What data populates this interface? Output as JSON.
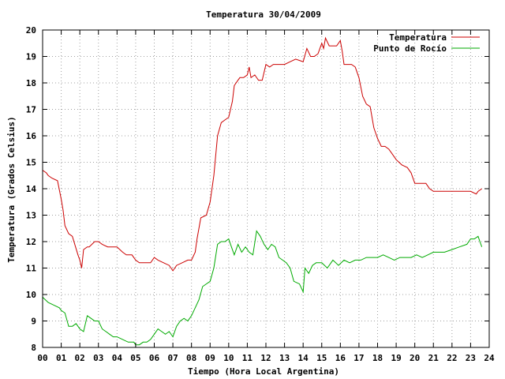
{
  "chart_data": {
    "type": "line",
    "title": "Temperatura 30/04/2009",
    "xlabel": "Tiempo (Hora Local Argentina)",
    "ylabel": "Temperatura (Grados Celsius)",
    "xlim": [
      0,
      24
    ],
    "ylim": [
      8,
      20
    ],
    "xticks": [
      "00",
      "01",
      "02",
      "03",
      "04",
      "05",
      "06",
      "07",
      "08",
      "09",
      "10",
      "11",
      "12",
      "13",
      "14",
      "15",
      "16",
      "17",
      "18",
      "19",
      "20",
      "21",
      "22",
      "23",
      "24"
    ],
    "yticks": [
      8,
      9,
      10,
      11,
      12,
      13,
      14,
      15,
      16,
      17,
      18,
      19,
      20
    ],
    "grid": true,
    "legend_position": "top-right",
    "series": [
      {
        "name": "Temperatura",
        "color": "#cc0000",
        "x": [
          0.0,
          0.2,
          0.3,
          0.5,
          0.8,
          1.0,
          1.1,
          1.2,
          1.4,
          1.6,
          1.9,
          2.0,
          2.1,
          2.2,
          2.4,
          2.5,
          2.8,
          3.0,
          3.2,
          3.5,
          3.8,
          4.0,
          4.3,
          4.5,
          4.8,
          5.0,
          5.2,
          5.5,
          5.8,
          6.0,
          6.2,
          6.5,
          6.8,
          7.0,
          7.2,
          7.5,
          7.8,
          8.0,
          8.2,
          8.3,
          8.5,
          8.8,
          9.0,
          9.2,
          9.4,
          9.6,
          9.8,
          10.0,
          10.2,
          10.3,
          10.5,
          10.6,
          10.8,
          11.0,
          11.1,
          11.2,
          11.4,
          11.6,
          11.8,
          12.0,
          12.2,
          12.4,
          12.6,
          13.0,
          13.3,
          13.6,
          14.0,
          14.2,
          14.4,
          14.6,
          14.8,
          15.0,
          15.1,
          15.2,
          15.4,
          15.6,
          15.8,
          16.0,
          16.1,
          16.2,
          16.4,
          16.6,
          16.8,
          17.0,
          17.2,
          17.4,
          17.6,
          17.8,
          18.0,
          18.2,
          18.4,
          18.6,
          18.8,
          19.0,
          19.3,
          19.6,
          19.8,
          20.0,
          20.3,
          20.6,
          20.8,
          21.0,
          21.3,
          21.6,
          22.0,
          22.5,
          23.0,
          23.3,
          23.4,
          23.6
        ],
        "values": [
          14.7,
          14.6,
          14.5,
          14.4,
          14.3,
          13.6,
          13.2,
          12.6,
          12.3,
          12.2,
          11.5,
          11.3,
          11.0,
          11.7,
          11.8,
          11.8,
          12.0,
          12.0,
          11.9,
          11.8,
          11.8,
          11.8,
          11.6,
          11.5,
          11.5,
          11.3,
          11.2,
          11.2,
          11.2,
          11.4,
          11.3,
          11.2,
          11.1,
          10.9,
          11.1,
          11.2,
          11.3,
          11.3,
          11.6,
          12.1,
          12.9,
          13.0,
          13.5,
          14.5,
          16.0,
          16.5,
          16.6,
          16.7,
          17.3,
          17.9,
          18.1,
          18.2,
          18.2,
          18.3,
          18.6,
          18.2,
          18.3,
          18.1,
          18.1,
          18.7,
          18.6,
          18.7,
          18.7,
          18.7,
          18.8,
          18.9,
          18.8,
          19.3,
          19.0,
          19.0,
          19.1,
          19.5,
          19.3,
          19.7,
          19.4,
          19.4,
          19.4,
          19.6,
          19.2,
          18.7,
          18.7,
          18.7,
          18.6,
          18.2,
          17.5,
          17.2,
          17.1,
          16.3,
          15.9,
          15.6,
          15.6,
          15.5,
          15.3,
          15.1,
          14.9,
          14.8,
          14.6,
          14.2,
          14.2,
          14.2,
          14.0,
          13.9,
          13.9,
          13.9,
          13.9,
          13.9,
          13.9,
          13.8,
          13.9,
          14.0
        ]
      },
      {
        "name": "Punto de Rocío",
        "color": "#00aa00",
        "x": [
          0.0,
          0.3,
          0.6,
          0.9,
          1.0,
          1.2,
          1.4,
          1.6,
          1.8,
          2.0,
          2.2,
          2.4,
          2.6,
          2.8,
          3.0,
          3.2,
          3.4,
          3.6,
          3.8,
          4.0,
          4.3,
          4.6,
          4.9,
          5.0,
          5.2,
          5.4,
          5.6,
          5.8,
          6.0,
          6.2,
          6.4,
          6.6,
          6.8,
          7.0,
          7.2,
          7.4,
          7.6,
          7.8,
          8.0,
          8.2,
          8.4,
          8.6,
          8.8,
          9.0,
          9.2,
          9.4,
          9.6,
          9.8,
          10.0,
          10.2,
          10.3,
          10.5,
          10.7,
          10.9,
          11.1,
          11.3,
          11.5,
          11.7,
          11.9,
          12.1,
          12.3,
          12.5,
          12.7,
          12.9,
          13.1,
          13.3,
          13.5,
          13.8,
          14.0,
          14.1,
          14.3,
          14.5,
          14.7,
          15.0,
          15.3,
          15.6,
          15.9,
          16.2,
          16.5,
          16.8,
          17.1,
          17.4,
          17.7,
          18.0,
          18.3,
          18.6,
          18.9,
          19.2,
          19.5,
          19.8,
          20.1,
          20.4,
          20.7,
          21.0,
          21.3,
          21.6,
          22.0,
          22.4,
          22.8,
          23.0,
          23.2,
          23.4,
          23.5,
          23.6
        ],
        "values": [
          9.9,
          9.7,
          9.6,
          9.5,
          9.4,
          9.3,
          8.8,
          8.8,
          8.9,
          8.7,
          8.6,
          9.2,
          9.1,
          9.0,
          9.0,
          8.7,
          8.6,
          8.5,
          8.4,
          8.4,
          8.3,
          8.2,
          8.2,
          8.1,
          8.1,
          8.2,
          8.2,
          8.3,
          8.5,
          8.7,
          8.6,
          8.5,
          8.6,
          8.4,
          8.8,
          9.0,
          9.1,
          9.0,
          9.2,
          9.5,
          9.8,
          10.3,
          10.4,
          10.5,
          11.0,
          11.9,
          12.0,
          12.0,
          12.1,
          11.7,
          11.5,
          11.9,
          11.6,
          11.8,
          11.6,
          11.5,
          12.4,
          12.2,
          11.9,
          11.7,
          11.9,
          11.8,
          11.4,
          11.3,
          11.2,
          11.0,
          10.5,
          10.4,
          10.1,
          11.0,
          10.8,
          11.1,
          11.2,
          11.2,
          11.0,
          11.3,
          11.1,
          11.3,
          11.2,
          11.3,
          11.3,
          11.4,
          11.4,
          11.4,
          11.5,
          11.4,
          11.3,
          11.4,
          11.4,
          11.4,
          11.5,
          11.4,
          11.5,
          11.6,
          11.6,
          11.6,
          11.7,
          11.8,
          11.9,
          12.1,
          12.1,
          12.2,
          12.0,
          11.8
        ]
      }
    ]
  }
}
